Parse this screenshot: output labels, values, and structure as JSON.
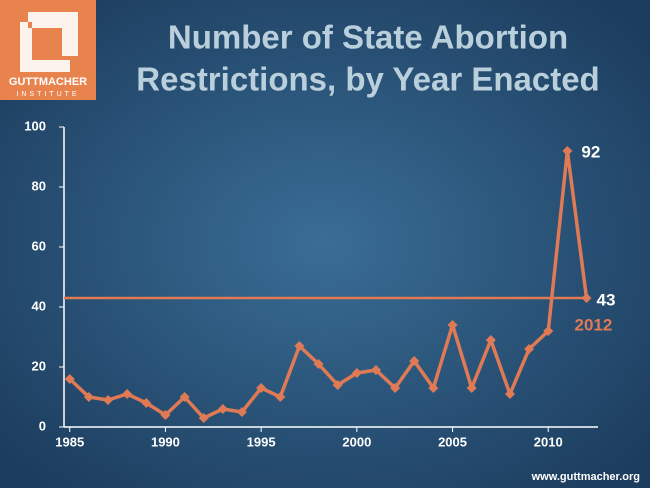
{
  "chart_data": {
    "type": "line",
    "title": [
      "Number of State Abortion",
      "Restrictions, by Year Enacted"
    ],
    "x": [
      1985,
      1986,
      1987,
      1988,
      1989,
      1990,
      1991,
      1992,
      1993,
      1994,
      1995,
      1996,
      1997,
      1998,
      1999,
      2000,
      2001,
      2002,
      2003,
      2004,
      2005,
      2006,
      2007,
      2008,
      2009,
      2010,
      2011,
      2012
    ],
    "values": [
      16,
      10,
      9,
      11,
      8,
      4,
      10,
      3,
      6,
      5,
      13,
      10,
      27,
      21,
      14,
      18,
      19,
      13,
      22,
      13,
      34,
      13,
      29,
      11,
      26,
      32,
      92,
      43
    ],
    "color": "#e07a55",
    "xlim": [
      1984.7,
      2012.6
    ],
    "xticks": [
      1985,
      1990,
      1995,
      2000,
      2005,
      2010
    ],
    "ylim": [
      0,
      100
    ],
    "yticks": [
      0,
      20,
      40,
      60,
      80,
      100
    ],
    "grid": false
  },
  "logo": {
    "name": "GUTTMACHER",
    "sub": "INSTITUTE"
  },
  "footer": "www.guttmacher.org"
}
